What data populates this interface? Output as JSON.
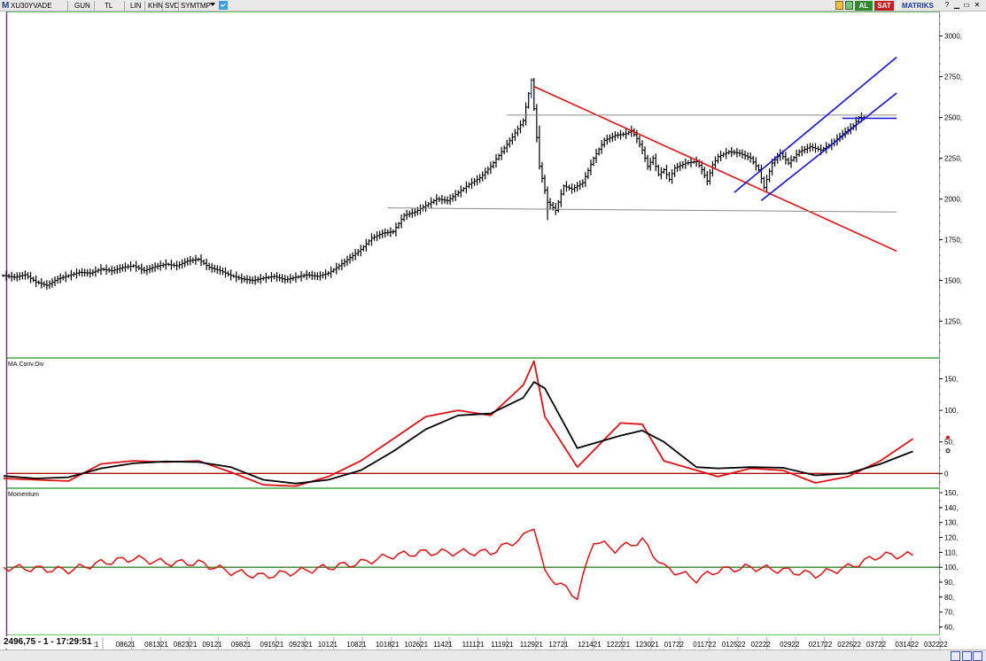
{
  "toolbar": {
    "logo": "M",
    "symbol": "XU30YVADE",
    "buttons": [
      "GUN",
      "TL",
      "LIN",
      "KHN",
      "SVD",
      "SYM",
      "TMP"
    ],
    "buy_label": "AL",
    "sell_label": "SAT",
    "brand": "MATRIKS"
  },
  "status": {
    "price_readout": "2496,75 - 1 - 17:29:51"
  },
  "colors": {
    "bars": "#000000",
    "red": "#e01010",
    "blue": "#1010d8",
    "gray_line": "#8a8a8a",
    "green": "#2a8a2a",
    "panel_border": "#6fbf6f"
  },
  "chart_data": [
    {
      "type": "bar",
      "panel": "price",
      "title": "",
      "ylim": [
        1030,
        3150
      ],
      "y_ticks": [
        "3000,",
        "2750,",
        "2500,",
        "2250,",
        "2000,",
        "1750,",
        "1500,",
        "1250,"
      ],
      "y_tick_values": [
        3000,
        2750,
        2500,
        2250,
        2000,
        1750,
        1500,
        1250
      ],
      "x_date_labels": [
        "921",
        "08621",
        "081321",
        "082321",
        "09121",
        "09821",
        "091521",
        "092321",
        "10121",
        "10821",
        "101821",
        "102621",
        "11421",
        "111121",
        "111921",
        "112921",
        "12721",
        "121421",
        "122221",
        "123021",
        "01722",
        "011722",
        "012522",
        "02222",
        "02922",
        "021722",
        "022522",
        "03722",
        "031422",
        "032222"
      ],
      "close_path": [
        [
          0,
          1530
        ],
        [
          4,
          1520
        ],
        [
          8,
          1535
        ],
        [
          12,
          1490
        ],
        [
          16,
          1470
        ],
        [
          20,
          1510
        ],
        [
          24,
          1530
        ],
        [
          28,
          1550
        ],
        [
          32,
          1545
        ],
        [
          36,
          1570
        ],
        [
          40,
          1560
        ],
        [
          44,
          1580
        ],
        [
          48,
          1590
        ],
        [
          52,
          1560
        ],
        [
          56,
          1585
        ],
        [
          60,
          1600
        ],
        [
          64,
          1590
        ],
        [
          68,
          1620
        ],
        [
          72,
          1630
        ],
        [
          76,
          1580
        ],
        [
          80,
          1560
        ],
        [
          84,
          1530
        ],
        [
          88,
          1510
        ],
        [
          92,
          1500
        ],
        [
          96,
          1515
        ],
        [
          100,
          1525
        ],
        [
          104,
          1505
        ],
        [
          108,
          1520
        ],
        [
          112,
          1535
        ],
        [
          116,
          1525
        ],
        [
          120,
          1545
        ],
        [
          124,
          1590
        ],
        [
          128,
          1640
        ],
        [
          132,
          1690
        ],
        [
          136,
          1760
        ],
        [
          140,
          1790
        ],
        [
          144,
          1800
        ],
        [
          148,
          1900
        ],
        [
          152,
          1920
        ],
        [
          156,
          1960
        ],
        [
          160,
          2000
        ],
        [
          164,
          1990
        ],
        [
          168,
          2040
        ],
        [
          172,
          2090
        ],
        [
          176,
          2130
        ],
        [
          180,
          2200
        ],
        [
          184,
          2290
        ],
        [
          188,
          2380
        ],
        [
          192,
          2480
        ],
        [
          195,
          2730
        ],
        [
          198,
          2200
        ],
        [
          201,
          1980
        ],
        [
          204,
          1930
        ],
        [
          207,
          2080
        ],
        [
          210,
          2060
        ],
        [
          214,
          2100
        ],
        [
          218,
          2250
        ],
        [
          222,
          2360
        ],
        [
          226,
          2390
        ],
        [
          230,
          2400
        ],
        [
          232,
          2420
        ],
        [
          234,
          2370
        ],
        [
          236,
          2300
        ],
        [
          238,
          2200
        ],
        [
          240,
          2250
        ],
        [
          242,
          2150
        ],
        [
          244,
          2180
        ],
        [
          246,
          2120
        ],
        [
          248,
          2190
        ],
        [
          252,
          2220
        ],
        [
          256,
          2230
        ],
        [
          258,
          2180
        ],
        [
          260,
          2110
        ],
        [
          262,
          2210
        ],
        [
          264,
          2260
        ],
        [
          268,
          2290
        ],
        [
          272,
          2280
        ],
        [
          276,
          2250
        ],
        [
          279,
          2180
        ],
        [
          281,
          2070
        ],
        [
          284,
          2220
        ],
        [
          287,
          2280
        ],
        [
          290,
          2220
        ],
        [
          294,
          2290
        ],
        [
          298,
          2320
        ],
        [
          302,
          2300
        ],
        [
          306,
          2340
        ],
        [
          310,
          2400
        ],
        [
          314,
          2450
        ],
        [
          316,
          2500
        ],
        [
          318,
          2497
        ]
      ],
      "extra_highs": [
        [
          195,
          2740
        ],
        [
          198,
          2450
        ],
        [
          201,
          1870
        ]
      ],
      "lines": [
        {
          "kind": "trend",
          "color": "red",
          "from": [
            196,
            2690
          ],
          "to": [
            330,
            1680
          ]
        },
        {
          "kind": "horizontal",
          "color": "gray",
          "from": [
            186,
            2515
          ],
          "to": [
            330,
            2515
          ]
        },
        {
          "kind": "horizontal",
          "color": "gray",
          "from": [
            142,
            1945
          ],
          "to": [
            330,
            1920
          ]
        },
        {
          "kind": "channel",
          "color": "blue",
          "from": [
            270,
            2040
          ],
          "to": [
            330,
            2870
          ]
        },
        {
          "kind": "channel",
          "color": "blue",
          "from": [
            280,
            1990
          ],
          "to": [
            330,
            2650
          ]
        },
        {
          "kind": "level",
          "color": "blue",
          "from": [
            310,
            2495
          ],
          "to": [
            330,
            2495
          ]
        }
      ]
    },
    {
      "type": "line",
      "panel": "macd",
      "title": "MA.Conv.Div",
      "ylim": [
        -22,
        183
      ],
      "y_ticks": [
        "150,",
        "100,",
        "50,",
        "0"
      ],
      "y_tick_values": [
        150,
        100,
        50,
        0
      ],
      "reference_level": 0,
      "series": [
        {
          "color": "red",
          "points": [
            [
              0,
              -8
            ],
            [
              12,
              -10
            ],
            [
              24,
              -12
            ],
            [
              36,
              15
            ],
            [
              48,
              20
            ],
            [
              60,
              18
            ],
            [
              72,
              20
            ],
            [
              84,
              2
            ],
            [
              96,
              -18
            ],
            [
              108,
              -20
            ],
            [
              120,
              -5
            ],
            [
              132,
              20
            ],
            [
              144,
              55
            ],
            [
              156,
              90
            ],
            [
              168,
              100
            ],
            [
              180,
              92
            ],
            [
              192,
              140
            ],
            [
              196,
              178
            ],
            [
              200,
              90
            ],
            [
              212,
              10
            ],
            [
              228,
              80
            ],
            [
              236,
              78
            ],
            [
              244,
              20
            ],
            [
              256,
              5
            ],
            [
              264,
              -5
            ],
            [
              276,
              8
            ],
            [
              288,
              5
            ],
            [
              300,
              -15
            ],
            [
              312,
              -5
            ],
            [
              324,
              20
            ],
            [
              336,
              55
            ]
          ]
        },
        {
          "color": "black",
          "points": [
            [
              0,
              -4
            ],
            [
              12,
              -8
            ],
            [
              24,
              -6
            ],
            [
              36,
              8
            ],
            [
              48,
              16
            ],
            [
              60,
              19
            ],
            [
              72,
              18
            ],
            [
              84,
              10
            ],
            [
              96,
              -10
            ],
            [
              108,
              -16
            ],
            [
              120,
              -10
            ],
            [
              132,
              5
            ],
            [
              144,
              35
            ],
            [
              156,
              70
            ],
            [
              168,
              92
            ],
            [
              180,
              95
            ],
            [
              192,
              120
            ],
            [
              196,
              145
            ],
            [
              200,
              135
            ],
            [
              212,
              40
            ],
            [
              228,
              60
            ],
            [
              236,
              68
            ],
            [
              244,
              50
            ],
            [
              256,
              10
            ],
            [
              264,
              8
            ],
            [
              276,
              10
            ],
            [
              288,
              9
            ],
            [
              300,
              -3
            ],
            [
              312,
              0
            ],
            [
              324,
              15
            ],
            [
              336,
              35
            ]
          ]
        }
      ]
    },
    {
      "type": "line",
      "panel": "momentum",
      "title": "Momentum",
      "ylim": [
        55,
        153
      ],
      "y_ticks": [
        "150,",
        "140,",
        "130,",
        "120,",
        "110,",
        "100,",
        "90,",
        "80,",
        "70,",
        "60,"
      ],
      "y_tick_values": [
        150,
        140,
        130,
        120,
        110,
        100,
        90,
        80,
        70,
        60
      ],
      "reference_level": 100,
      "series": [
        {
          "color": "red",
          "points": [
            [
              0,
              100
            ],
            [
              12,
              99
            ],
            [
              24,
              98
            ],
            [
              36,
              103
            ],
            [
              48,
              106
            ],
            [
              60,
              103
            ],
            [
              72,
              103
            ],
            [
              84,
              97
            ],
            [
              96,
              94
            ],
            [
              108,
              97
            ],
            [
              120,
              100
            ],
            [
              132,
              103
            ],
            [
              144,
              108
            ],
            [
              156,
              110
            ],
            [
              168,
              110
            ],
            [
              180,
              110
            ],
            [
              192,
              120
            ],
            [
              196,
              128
            ],
            [
              200,
              96
            ],
            [
              212,
              80
            ],
            [
              218,
              118
            ],
            [
              226,
              112
            ],
            [
              236,
              118
            ],
            [
              244,
              100
            ],
            [
              256,
              92
            ],
            [
              264,
              98
            ],
            [
              276,
              100
            ],
            [
              288,
              98
            ],
            [
              300,
              95
            ],
            [
              312,
              100
            ],
            [
              324,
              108
            ],
            [
              336,
              108
            ]
          ]
        }
      ]
    }
  ]
}
